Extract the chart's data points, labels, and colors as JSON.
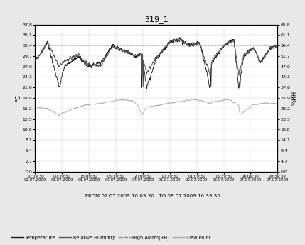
{
  "title": "319_1",
  "left_ylabel": "°C",
  "right_ylabel": "%RH",
  "left_yticks": [
    0.0,
    2.7,
    5.4,
    8.1,
    10.8,
    13.5,
    16.2,
    18.9,
    21.6,
    24.3,
    27.0,
    29.7,
    32.4,
    35.1,
    37.8
  ],
  "right_yticks": [
    0.0,
    4.7,
    9.4,
    14.1,
    18.8,
    23.5,
    28.2,
    32.9,
    37.6,
    42.3,
    47.0,
    51.7,
    56.4,
    61.1,
    65.8
  ],
  "xtick_labels_row1": [
    "10:09:30",
    "00:39:30",
    "15:09:30",
    "05:39:30",
    "20:09:30",
    "10:39:30",
    "01:09:30",
    "15:39:30",
    "06:09:30",
    "20:39:30"
  ],
  "xtick_labels_row2": [
    "02.07.2009",
    "03.07.2009",
    "03.07.2009",
    "04.07.2009",
    "04.07.2009",
    "05.07.2009",
    "06.07.2009",
    "06.07.2009",
    "07.07.2009",
    "07.07.2009"
  ],
  "from_to_label": "FROM:02.07.2009 10:09:30   TO:08.07.2009 10:39:30",
  "legend_items": [
    {
      "label": "Temperature",
      "linestyle": "solid",
      "color": "#1a1a1a"
    },
    {
      "label": "Relative Humidity",
      "linestyle": "solid",
      "color": "#555555"
    },
    {
      "label": "High Alarm(RH)",
      "linestyle": "dashed",
      "color": "#888888"
    },
    {
      "label": "Dew Point",
      "linestyle": "solid",
      "color": "#aaaaaa"
    }
  ],
  "bg_color": "#e8e8e8",
  "plot_bg_color": "#ffffff",
  "left_ylim": [
    0.0,
    37.8
  ],
  "right_ylim": [
    0.0,
    65.8
  ],
  "high_alarm_rh": 56.4,
  "n_points": 2000
}
